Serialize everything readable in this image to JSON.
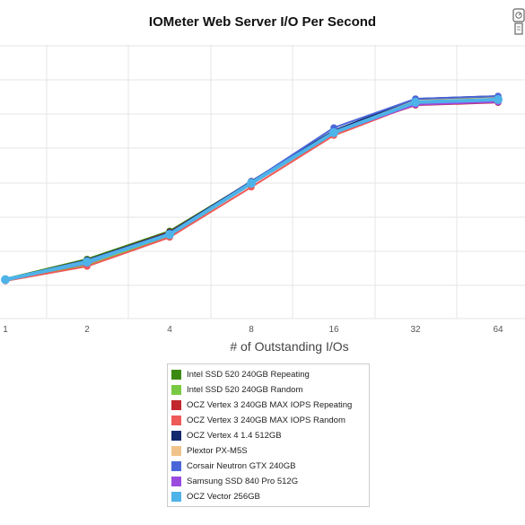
{
  "chart_data": {
    "type": "line",
    "title": "IOMeter Web Server I/O Per Second",
    "xlabel": "# of Outstanding I/Os",
    "ylabel": "",
    "x_scale": "log2",
    "categories": [
      "1",
      "2",
      "4",
      "8",
      "16",
      "32",
      "64"
    ],
    "grid": true,
    "legend_position": "bottom",
    "series": [
      {
        "name": "Intel SSD 520 240GB Repeating",
        "color": "#3a8a12",
        "values": [
          0.4,
          0.31,
          0.23,
          0.14,
          0.04,
          -0.07,
          -0.07
        ]
      },
      {
        "name": "Intel SSD 520 240GB Random",
        "color": "#7ac943",
        "values": [
          0.5,
          0.44,
          0.33,
          0.19,
          0.08,
          0.02,
          0.02
        ]
      },
      {
        "name": "OCZ Vertex 3 240GB MAX IOPS Repeating",
        "color": "#c1272d",
        "values": [
          0.43,
          0.34,
          0.25,
          0.15,
          0.05,
          0.04,
          0.04
        ]
      },
      {
        "name": "OCZ Vertex 3 240GB MAX IOPS Random",
        "color": "#ee5a58",
        "values": [
          0.56,
          0.46,
          0.36,
          0.25,
          0.11,
          0.02,
          0.02
        ]
      },
      {
        "name": "OCZ Vertex 4 1.4 512GB",
        "color": "#14286e",
        "values": [
          0.42,
          0.33,
          0.26,
          0.13,
          0.01,
          -0.09,
          -0.09
        ]
      },
      {
        "name": "Plextor PX-M5S",
        "color": "#f0c38a",
        "values": [
          0.43,
          0.34,
          0.28,
          0.15,
          0.04,
          -0.05,
          -0.05
        ]
      },
      {
        "name": "Corsair Neutron GTX 240GB",
        "color": "#4a67d9",
        "values": [
          0.44,
          0.34,
          0.28,
          0.14,
          -0.05,
          -0.09,
          -0.09
        ]
      },
      {
        "name": "Samsung SSD 840 Pro 512G",
        "color": "#9b4ae0",
        "values": [
          0.47,
          0.4,
          0.29,
          0.19,
          0.06,
          0.03,
          0.03
        ]
      },
      {
        "name": "OCZ Vector 256GB",
        "color": "#4eb3e8",
        "values": [
          0.46,
          0.37,
          0.3,
          0.17,
          0.05,
          -0.02,
          -0.02
        ]
      }
    ]
  }
}
